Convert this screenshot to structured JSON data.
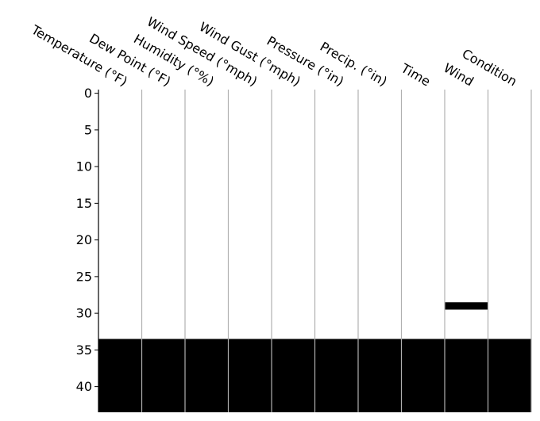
{
  "chart_data": {
    "type": "heatmap",
    "title": "",
    "xlabel": "",
    "ylabel": "",
    "columns": [
      "Temperature (°F)",
      "Dew Point (°F)",
      "Humidity (°%)",
      "Wind Speed (°mph)",
      "Wind Gust (°mph)",
      "Pressure (°in)",
      "Precip. (°in)",
      "Time",
      "Wind",
      "Condition"
    ],
    "row_count": 44,
    "y_ticks": [
      0,
      5,
      10,
      15,
      20,
      25,
      30,
      35,
      40
    ],
    "ylim": [
      0,
      44
    ],
    "present_color": "#ffffff",
    "missing_color": "#000000",
    "grid": true,
    "legend": "none",
    "missing": [
      {
        "column": "Temperature (°F)",
        "rows": [
          34,
          35,
          36,
          37,
          38,
          39,
          40,
          41,
          42,
          43
        ]
      },
      {
        "column": "Dew Point (°F)",
        "rows": [
          34,
          35,
          36,
          37,
          38,
          39,
          40,
          41,
          42,
          43
        ]
      },
      {
        "column": "Humidity (°%)",
        "rows": [
          34,
          35,
          36,
          37,
          38,
          39,
          40,
          41,
          42,
          43
        ]
      },
      {
        "column": "Wind Speed (°mph)",
        "rows": [
          34,
          35,
          36,
          37,
          38,
          39,
          40,
          41,
          42,
          43
        ]
      },
      {
        "column": "Wind Gust (°mph)",
        "rows": [
          34,
          35,
          36,
          37,
          38,
          39,
          40,
          41,
          42,
          43
        ]
      },
      {
        "column": "Pressure (°in)",
        "rows": [
          34,
          35,
          36,
          37,
          38,
          39,
          40,
          41,
          42,
          43
        ]
      },
      {
        "column": "Precip. (°in)",
        "rows": [
          34,
          35,
          36,
          37,
          38,
          39,
          40,
          41,
          42,
          43
        ]
      },
      {
        "column": "Time",
        "rows": [
          34,
          35,
          36,
          37,
          38,
          39,
          40,
          41,
          42,
          43
        ]
      },
      {
        "column": "Wind",
        "rows": [
          29,
          34,
          35,
          36,
          37,
          38,
          39,
          40,
          41,
          42,
          43
        ]
      },
      {
        "column": "Condition",
        "rows": [
          34,
          35,
          36,
          37,
          38,
          39,
          40,
          41,
          42,
          43
        ]
      }
    ]
  }
}
